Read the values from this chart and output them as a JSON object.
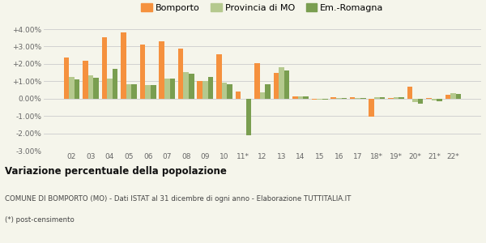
{
  "years": [
    "02",
    "03",
    "04",
    "05",
    "06",
    "07",
    "08",
    "09",
    "10",
    "11*",
    "12",
    "13",
    "14",
    "15",
    "16",
    "17",
    "18*",
    "19*",
    "20*",
    "21*",
    "22*"
  ],
  "bomporto": [
    2.35,
    2.18,
    3.55,
    3.8,
    3.1,
    3.3,
    2.9,
    1.0,
    2.55,
    0.4,
    2.05,
    1.5,
    0.15,
    -0.05,
    0.1,
    0.1,
    -1.05,
    0.05,
    0.7,
    0.05,
    0.2
  ],
  "provincia": [
    1.25,
    1.35,
    1.15,
    0.85,
    0.8,
    1.15,
    1.55,
    1.0,
    0.9,
    0.0,
    0.35,
    1.8,
    0.15,
    -0.05,
    0.05,
    0.05,
    0.1,
    0.1,
    -0.2,
    -0.1,
    0.3
  ],
  "emromagna": [
    1.1,
    1.2,
    1.7,
    0.85,
    0.8,
    1.15,
    1.45,
    1.25,
    0.85,
    -2.1,
    0.85,
    1.6,
    0.15,
    -0.05,
    0.05,
    0.05,
    0.1,
    0.1,
    -0.3,
    -0.15,
    0.25
  ],
  "color_bomporto": "#f5913e",
  "color_provincia": "#b5c98e",
  "color_emromagna": "#7a9e50",
  "title": "Variazione percentuale della popolazione",
  "subtitle1": "COMUNE DI BOMPORTO (MO) - Dati ISTAT al 31 dicembre di ogni anno - Elaborazione TUTTITALIA.IT",
  "subtitle2": "(*) post-censimento",
  "ylim": [
    -3.0,
    4.0
  ],
  "yticks": [
    -3.0,
    -2.0,
    -1.0,
    0.0,
    1.0,
    2.0,
    3.0,
    4.0
  ],
  "ytick_labels": [
    "-3.00%",
    "-2.00%",
    "-1.00%",
    "0.00%",
    "+1.00%",
    "+2.00%",
    "+3.00%",
    "+4.00%"
  ],
  "legend_labels": [
    "Bomporto",
    "Provincia di MO",
    "Em.-Romagna"
  ],
  "bg_color": "#f5f5eb",
  "bar_width": 0.28
}
